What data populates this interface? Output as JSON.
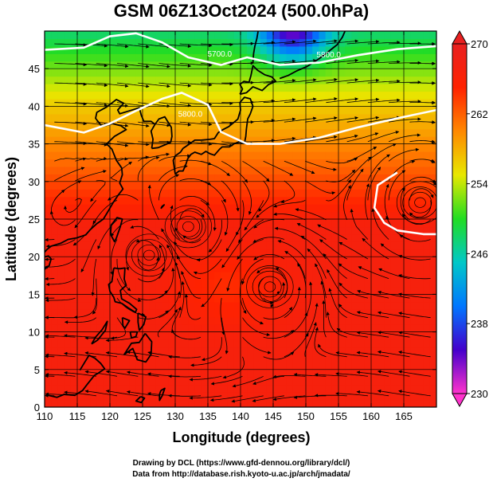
{
  "chart_data": {
    "type": "heatmap",
    "title": "GSM 06Z13Oct2024 (500.0hPa)",
    "xlabel": "Longitude (degrees)",
    "ylabel": "Latitude  (degrees)",
    "xlim": [
      110,
      170
    ],
    "ylim": [
      0,
      50
    ],
    "xticks": [
      110,
      115,
      120,
      125,
      130,
      135,
      140,
      145,
      150,
      155,
      160,
      165
    ],
    "yticks": [
      0,
      5,
      10,
      15,
      20,
      25,
      30,
      35,
      40,
      45
    ],
    "grid": true,
    "colorbar": {
      "position": "right",
      "min": 230,
      "max": 270,
      "ticks": [
        230,
        238,
        246,
        254,
        262,
        270
      ],
      "colors": [
        "#ff33cc",
        "#4400cc",
        "#0077ff",
        "#00c8c8",
        "#22dd22",
        "#e8e800",
        "#ff8800",
        "#ff2200",
        "#e82020"
      ]
    },
    "contours": [
      {
        "label": "5700.0",
        "points": [
          [
            110,
            47.5
          ],
          [
            116,
            47.8
          ],
          [
            120,
            49.3
          ],
          [
            124,
            49.7
          ],
          [
            128,
            48.5
          ],
          [
            132,
            46.5
          ],
          [
            137,
            45.5
          ],
          [
            141,
            46.5
          ],
          [
            146,
            45.5
          ],
          [
            152,
            45.8
          ],
          [
            158,
            46.8
          ],
          [
            164,
            47.6
          ],
          [
            170,
            48.0
          ]
        ]
      },
      {
        "label": "5800.0",
        "points": [
          [
            110,
            37.5
          ],
          [
            113,
            37.0
          ],
          [
            116,
            36.5
          ],
          [
            120,
            37.7
          ],
          [
            124,
            39.4
          ],
          [
            128,
            41.0
          ],
          [
            131,
            41.8
          ],
          [
            135,
            40.2
          ],
          [
            137,
            36.6
          ],
          [
            141,
            35.0
          ],
          [
            146,
            35.0
          ],
          [
            152,
            35.8
          ],
          [
            158,
            37.2
          ],
          [
            164,
            38.4
          ],
          [
            170,
            39.5
          ]
        ]
      },
      {
        "label": "",
        "points": [
          [
            164,
            31.2
          ],
          [
            161,
            29.5
          ],
          [
            160.5,
            26.5
          ],
          [
            162,
            24.5
          ],
          [
            164,
            23.5
          ],
          [
            168,
            23.0
          ],
          [
            170,
            23.0
          ]
        ]
      }
    ],
    "contour_labels": [
      "5700.0",
      "5800.0",
      "5800.0"
    ],
    "vortices": [
      {
        "x": 126.0,
        "y": 20.2,
        "sense": "ccw"
      },
      {
        "x": 144.5,
        "y": 16.0,
        "sense": "ccw"
      },
      {
        "x": 167.5,
        "y": 27.2,
        "sense": "cw"
      },
      {
        "x": 132.0,
        "y": 24.0,
        "sense": "cw"
      }
    ],
    "credits": [
      "Drawing by DCL (https://www.gfd-dennou.org/library/dcl/)",
      "Data from http://database.rish.kyoto-u.ac.jp/arch/jmadata/"
    ]
  }
}
